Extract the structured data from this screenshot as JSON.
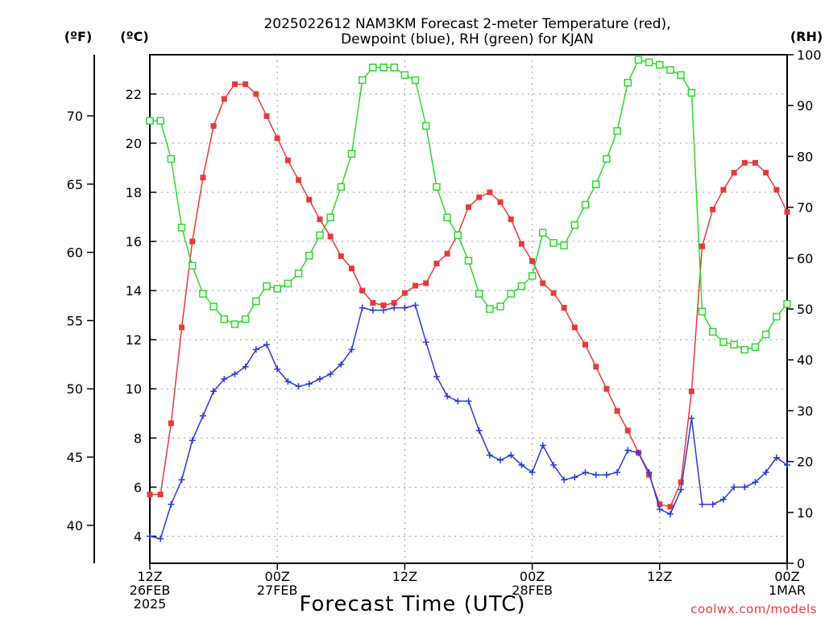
{
  "chart_data": {
    "type": "line",
    "title_line1": "2025022612 NAM3KM Forecast 2-meter Temperature (red),",
    "title_line2": "Dewpoint (blue), RH (green) for KJAN",
    "xlabel": "Forecast Time (UTC)",
    "credit": "coolwx.com/models",
    "axis_units": {
      "f": "(ºF)",
      "c": "(ºC)",
      "rh": "(RH)"
    },
    "x_range": [
      0,
      60
    ],
    "x_ticks": [
      {
        "value": 0,
        "lines": [
          "12Z",
          "26FEB",
          "2025"
        ]
      },
      {
        "value": 12,
        "lines": [
          "00Z",
          "27FEB"
        ]
      },
      {
        "value": 24,
        "lines": [
          "12Z"
        ]
      },
      {
        "value": 36,
        "lines": [
          "00Z",
          "28FEB"
        ]
      },
      {
        "value": 48,
        "lines": [
          "12Z"
        ]
      },
      {
        "value": 60,
        "lines": [
          "00Z",
          "1MAR"
        ]
      }
    ],
    "c_range": [
      2.9,
      23.6
    ],
    "c_ticks": [
      4,
      6,
      8,
      10,
      12,
      14,
      16,
      18,
      20,
      22
    ],
    "f_ticks": [
      40,
      45,
      50,
      55,
      60,
      65,
      70
    ],
    "rh_range": [
      0,
      100
    ],
    "rh_ticks": [
      0,
      10,
      20,
      30,
      40,
      50,
      60,
      70,
      80,
      90,
      100
    ],
    "colors": {
      "temperature": "#e83a3a",
      "dewpoint": "#2a3ad8",
      "rh": "#2fd82f"
    },
    "series": [
      {
        "name": "Temperature",
        "unit": "C",
        "marker": "square-filled",
        "values": [
          5.7,
          5.7,
          8.6,
          12.5,
          16.0,
          18.6,
          20.7,
          21.8,
          22.4,
          22.4,
          22.0,
          21.1,
          20.2,
          19.3,
          18.5,
          17.7,
          16.9,
          16.2,
          15.4,
          14.9,
          14.0,
          13.5,
          13.4,
          13.5,
          13.9,
          14.2,
          14.3,
          15.1,
          15.5,
          16.3,
          17.4,
          17.8,
          18.0,
          17.6,
          16.9,
          15.9,
          15.2,
          14.3,
          13.9,
          13.3,
          12.5,
          11.8,
          10.9,
          10.0,
          9.1,
          8.3,
          7.4,
          6.5,
          5.3,
          5.2,
          6.2,
          9.9,
          15.8,
          17.3,
          18.1,
          18.8,
          19.2,
          19.2,
          18.8,
          18.1,
          17.2
        ]
      },
      {
        "name": "Dewpoint",
        "unit": "C",
        "marker": "plus",
        "values": [
          4.0,
          3.9,
          5.3,
          6.3,
          7.9,
          8.9,
          9.9,
          10.4,
          10.6,
          10.9,
          11.6,
          11.8,
          10.8,
          10.3,
          10.1,
          10.2,
          10.4,
          10.6,
          11.0,
          11.6,
          13.3,
          13.2,
          13.2,
          13.3,
          13.3,
          13.4,
          11.9,
          10.5,
          9.7,
          9.5,
          9.5,
          8.3,
          7.3,
          7.1,
          7.3,
          6.9,
          6.6,
          7.7,
          6.9,
          6.3,
          6.4,
          6.6,
          6.5,
          6.5,
          6.6,
          7.5,
          7.4,
          6.6,
          5.1,
          4.9,
          5.9,
          8.8,
          5.3,
          5.3,
          5.5,
          6.0,
          6.0,
          6.2,
          6.6,
          7.2,
          6.9
        ]
      },
      {
        "name": "RH",
        "unit": "%",
        "marker": "square-open",
        "values": [
          87,
          87,
          79.5,
          66,
          58.5,
          53,
          50.5,
          48,
          47,
          48,
          51.5,
          54.5,
          54,
          55,
          57,
          60.5,
          64.5,
          68,
          74,
          80.5,
          95,
          97.5,
          97.5,
          97.5,
          96,
          95,
          86,
          74,
          68,
          64.5,
          59.5,
          53,
          50,
          50.5,
          53,
          54.5,
          56.5,
          65,
          63,
          62.5,
          66.5,
          70.5,
          74.5,
          79.5,
          85,
          94.5,
          99,
          98.5,
          98,
          97,
          96,
          92.5,
          49.5,
          45.5,
          43.5,
          43,
          42,
          42.5,
          45,
          48.5,
          51
        ]
      }
    ]
  }
}
